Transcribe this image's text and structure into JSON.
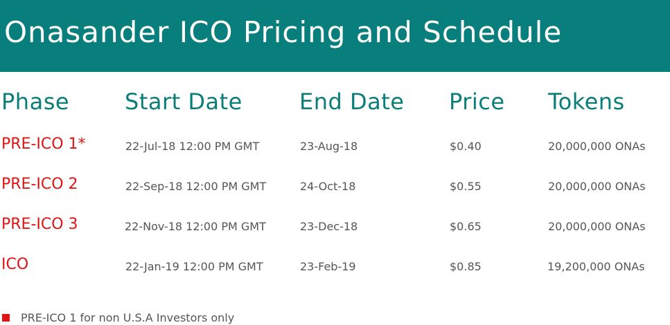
{
  "title": "Onasander ICO Pricing and Schedule",
  "headers": {
    "phase": "Phase",
    "start": "Start Date",
    "end": "End Date",
    "price": "Price",
    "tokens": "Tokens"
  },
  "rows": [
    {
      "phase": "PRE-ICO 1*",
      "start": "22-Jul-18 12:00 PM GMT",
      "end": "23-Aug-18",
      "price": "$0.40",
      "tokens": "20,000,000 ONAs"
    },
    {
      "phase": "PRE-ICO 2",
      "start": "22-Sep-18 12:00 PM GMT",
      "end": "24-Oct-18",
      "price": "$0.55",
      "tokens": "20,000,000 ONAs"
    },
    {
      "phase": "PRE-ICO 3",
      "start": "22-Nov-18 12:00 PM GMT",
      "end": "23-Dec-18",
      "price": "$0.65",
      "tokens": "20,000,000 ONAs"
    },
    {
      "phase": "ICO",
      "start": "22-Jan-19 12:00 PM GMT",
      "end": "23-Feb-19",
      "price": "$0.85",
      "tokens": "19,200,000 ONAs"
    }
  ],
  "footnote": "PRE-ICO 1 for non U.S.A Investors only",
  "colors": {
    "banner": "#087f7d",
    "header_text": "#0b7d79",
    "phase_text": "#e01414",
    "body_text": "#555555"
  }
}
